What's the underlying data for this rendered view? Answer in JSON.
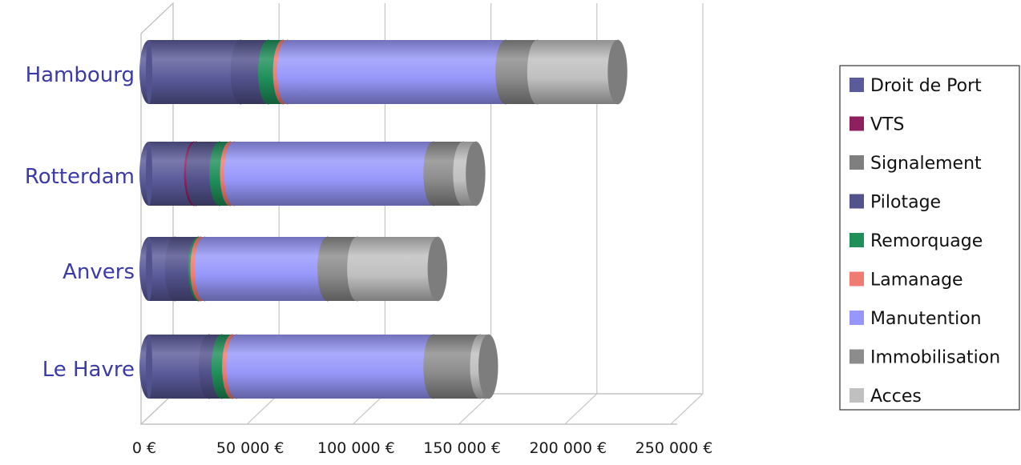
{
  "chart_data": {
    "type": "bar",
    "orientation": "horizontal",
    "stacked": true,
    "style": "3d-cylinder",
    "categories": [
      "Hambourg",
      "Rotterdam",
      "Anvers",
      "Le Havre"
    ],
    "xlim": [
      0,
      250000
    ],
    "x_ticks": [
      0,
      50000,
      100000,
      150000,
      200000,
      250000
    ],
    "x_tick_labels": [
      "0 €",
      "50 000 €",
      "100 000 €",
      "150 000 €",
      "200 000 €",
      "250 000 €"
    ],
    "grid": true,
    "legend_position": "right",
    "series": [
      {
        "name": "Droit de Port",
        "color": "#5b5b9b",
        "values": [
          43000,
          21000,
          12000,
          28000
        ]
      },
      {
        "name": "VTS",
        "color": "#8e2060",
        "values": [
          0,
          1000,
          0,
          0
        ]
      },
      {
        "name": "Signalement",
        "color": "#7f7f7f",
        "values": [
          0,
          0,
          0,
          0
        ]
      },
      {
        "name": "Pilotage",
        "color": "#52528c",
        "values": [
          13000,
          11000,
          11000,
          6000
        ]
      },
      {
        "name": "Remorquage",
        "color": "#1f8f5a",
        "values": [
          7000,
          5000,
          1000,
          5000
        ]
      },
      {
        "name": "Lamanage",
        "color": "#f07b72",
        "values": [
          2000,
          2000,
          2000,
          2000
        ]
      },
      {
        "name": "Manutention",
        "color": "#9797fb",
        "values": [
          103000,
          94000,
          58000,
          93000
        ]
      },
      {
        "name": "Immobilisation",
        "color": "#8c8c8c",
        "values": [
          15000,
          14000,
          14000,
          22000
        ]
      },
      {
        "name": "Acces",
        "color": "#c0c0c0",
        "values": [
          38000,
          6000,
          38000,
          4000
        ]
      }
    ]
  }
}
